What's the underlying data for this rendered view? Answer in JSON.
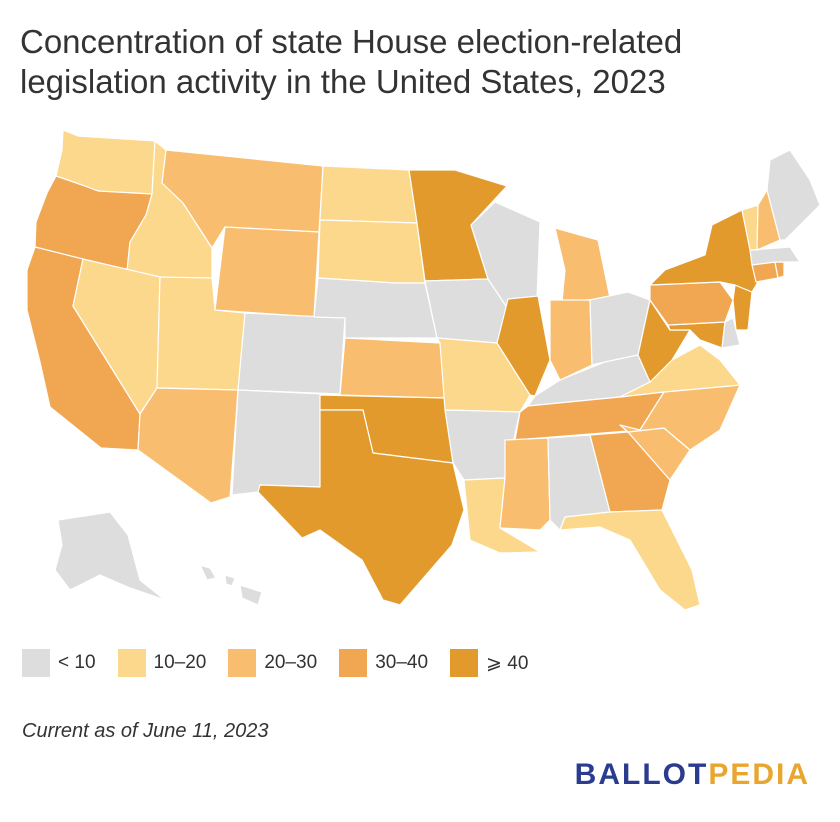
{
  "title": "Concentration of state House election-related legislation activity in the United States, 2023",
  "legend": [
    {
      "label": "< 10",
      "color": "#dddddd"
    },
    {
      "label": "10–20",
      "color": "#fcd88d"
    },
    {
      "label": "20–30",
      "color": "#f8bd6e"
    },
    {
      "label": "30–40",
      "color": "#f1a652"
    },
    {
      "label": "⩾ 40",
      "color": "#e39a2d"
    }
  ],
  "note": "Current as of June 11, 2023",
  "logo": {
    "part1": "BALLOT",
    "part2": "PEDIA"
  },
  "states": [
    {
      "name": "Washington",
      "bin": 1
    },
    {
      "name": "Oregon",
      "bin": 3
    },
    {
      "name": "California",
      "bin": 3
    },
    {
      "name": "Idaho",
      "bin": 1
    },
    {
      "name": "Nevada",
      "bin": 1
    },
    {
      "name": "Montana",
      "bin": 2
    },
    {
      "name": "Wyoming",
      "bin": 2
    },
    {
      "name": "Utah",
      "bin": 1
    },
    {
      "name": "Arizona",
      "bin": 2
    },
    {
      "name": "Colorado",
      "bin": 0
    },
    {
      "name": "New Mexico",
      "bin": 0
    },
    {
      "name": "North Dakota",
      "bin": 1
    },
    {
      "name": "South Dakota",
      "bin": 1
    },
    {
      "name": "Nebraska",
      "bin": 0
    },
    {
      "name": "Kansas",
      "bin": 2
    },
    {
      "name": "Oklahoma",
      "bin": 4
    },
    {
      "name": "Texas",
      "bin": 4
    },
    {
      "name": "Minnesota",
      "bin": 4
    },
    {
      "name": "Iowa",
      "bin": 0
    },
    {
      "name": "Missouri",
      "bin": 1
    },
    {
      "name": "Arkansas",
      "bin": 0
    },
    {
      "name": "Louisiana",
      "bin": 1
    },
    {
      "name": "Wisconsin",
      "bin": 0
    },
    {
      "name": "Illinois",
      "bin": 4
    },
    {
      "name": "Michigan",
      "bin": 2
    },
    {
      "name": "Indiana",
      "bin": 2
    },
    {
      "name": "Ohio",
      "bin": 0
    },
    {
      "name": "Kentucky",
      "bin": 0
    },
    {
      "name": "Tennessee",
      "bin": 3
    },
    {
      "name": "Mississippi",
      "bin": 2
    },
    {
      "name": "Alabama",
      "bin": 0
    },
    {
      "name": "Georgia",
      "bin": 3
    },
    {
      "name": "Florida",
      "bin": 1
    },
    {
      "name": "South Carolina",
      "bin": 2
    },
    {
      "name": "North Carolina",
      "bin": 2
    },
    {
      "name": "Virginia",
      "bin": 1
    },
    {
      "name": "West Virginia",
      "bin": 4
    },
    {
      "name": "Maryland",
      "bin": 4
    },
    {
      "name": "Delaware",
      "bin": 0
    },
    {
      "name": "Pennsylvania",
      "bin": 3
    },
    {
      "name": "New Jersey",
      "bin": 4
    },
    {
      "name": "New York",
      "bin": 4
    },
    {
      "name": "Connecticut",
      "bin": 3
    },
    {
      "name": "Rhode Island",
      "bin": 3
    },
    {
      "name": "Massachusetts",
      "bin": 0
    },
    {
      "name": "Vermont",
      "bin": 1
    },
    {
      "name": "New Hampshire",
      "bin": 2
    },
    {
      "name": "Maine",
      "bin": 0
    },
    {
      "name": "Alaska",
      "bin": 0
    },
    {
      "name": "Hawaii",
      "bin": 0
    }
  ]
}
